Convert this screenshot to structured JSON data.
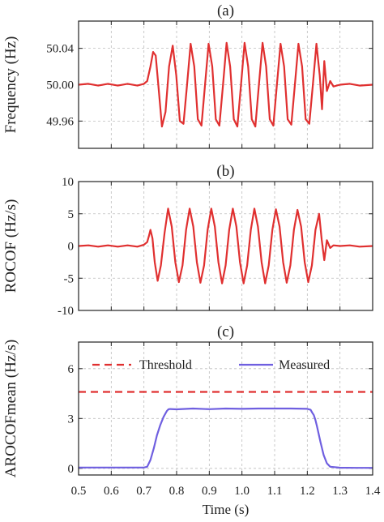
{
  "chart_data": [
    {
      "panel": "(a)",
      "type": "line",
      "title": "(a)",
      "xlabel": "",
      "ylabel": "Frequency (Hz)",
      "xlim": [
        0.5,
        1.4
      ],
      "ylim": [
        49.93,
        50.07
      ],
      "yticks": [
        49.96,
        50.0,
        50.04
      ],
      "ytick_labels": [
        "49.96",
        "50.00",
        "50.04"
      ],
      "grid": "dashed",
      "line_color": "#e03030",
      "series": [
        {
          "x": [
            0.5,
            0.53,
            0.56,
            0.59,
            0.62,
            0.65,
            0.68,
            0.7,
            0.71,
            0.715,
            0.72,
            0.728,
            0.736,
            0.745,
            0.755,
            0.766,
            0.777,
            0.788,
            0.799,
            0.81,
            0.821,
            0.832,
            0.843,
            0.854,
            0.865,
            0.876,
            0.887,
            0.898,
            0.909,
            0.92,
            0.931,
            0.942,
            0.953,
            0.964,
            0.975,
            0.986,
            0.997,
            1.008,
            1.019,
            1.03,
            1.041,
            1.052,
            1.063,
            1.074,
            1.085,
            1.096,
            1.107,
            1.118,
            1.129,
            1.14,
            1.151,
            1.162,
            1.173,
            1.184,
            1.195,
            1.206,
            1.217,
            1.228,
            1.238,
            1.245,
            1.252,
            1.26,
            1.27,
            1.28,
            1.3,
            1.33,
            1.36,
            1.4
          ],
          "y": [
            50.0,
            50.001,
            49.999,
            50.001,
            49.999,
            50.001,
            49.999,
            50.001,
            50.004,
            50.012,
            50.02,
            50.036,
            50.032,
            49.996,
            49.954,
            49.97,
            50.02,
            50.043,
            50.01,
            49.96,
            49.957,
            50.0,
            50.045,
            50.02,
            49.962,
            49.955,
            50.0,
            50.045,
            50.02,
            49.962,
            49.955,
            50.0,
            50.046,
            50.02,
            49.962,
            49.954,
            50.0,
            50.046,
            50.02,
            49.962,
            49.954,
            50.0,
            50.046,
            50.02,
            49.962,
            49.955,
            50.0,
            50.045,
            50.02,
            49.962,
            49.956,
            50.0,
            50.045,
            50.02,
            49.962,
            49.957,
            50.0,
            50.045,
            50.01,
            49.973,
            50.026,
            49.993,
            50.004,
            49.998,
            50.0,
            50.001,
            49.999,
            50.0
          ]
        }
      ]
    },
    {
      "panel": "(b)",
      "type": "line",
      "title": "(b)",
      "xlabel": "",
      "ylabel": "ROCOF (Hz/s)",
      "xlim": [
        0.5,
        1.4
      ],
      "ylim": [
        -10,
        10
      ],
      "yticks": [
        -10,
        -5,
        0,
        5,
        10
      ],
      "ytick_labels": [
        "-10",
        "-5",
        "0",
        "5",
        "10"
      ],
      "grid": "dashed",
      "line_color": "#e03030",
      "series": [
        {
          "x": [
            0.5,
            0.53,
            0.56,
            0.59,
            0.62,
            0.65,
            0.68,
            0.7,
            0.71,
            0.715,
            0.72,
            0.726,
            0.733,
            0.742,
            0.752,
            0.763,
            0.774,
            0.785,
            0.796,
            0.807,
            0.818,
            0.829,
            0.84,
            0.851,
            0.862,
            0.873,
            0.884,
            0.895,
            0.906,
            0.917,
            0.928,
            0.939,
            0.95,
            0.961,
            0.972,
            0.983,
            0.994,
            1.005,
            1.016,
            1.027,
            1.038,
            1.049,
            1.06,
            1.071,
            1.082,
            1.093,
            1.104,
            1.115,
            1.126,
            1.137,
            1.148,
            1.159,
            1.17,
            1.181,
            1.192,
            1.203,
            1.214,
            1.225,
            1.236,
            1.244,
            1.252,
            1.26,
            1.27,
            1.28,
            1.3,
            1.33,
            1.36,
            1.4
          ],
          "y": [
            0.0,
            0.1,
            -0.1,
            0.1,
            -0.1,
            0.1,
            -0.1,
            0.2,
            0.6,
            1.5,
            2.5,
            1.2,
            -2.5,
            -5.4,
            -3.0,
            2.0,
            5.8,
            3.0,
            -2.5,
            -5.6,
            -3.0,
            2.5,
            5.8,
            3.0,
            -2.5,
            -5.7,
            -3.0,
            2.5,
            5.8,
            3.0,
            -2.5,
            -5.8,
            -3.0,
            2.5,
            5.8,
            3.0,
            -2.5,
            -5.8,
            -3.0,
            2.5,
            5.8,
            3.0,
            -2.5,
            -5.8,
            -3.0,
            2.5,
            5.7,
            3.0,
            -2.5,
            -5.7,
            -3.0,
            2.5,
            5.6,
            3.0,
            -2.5,
            -5.6,
            -3.0,
            2.5,
            5.0,
            1.0,
            -2.2,
            0.9,
            -0.3,
            0.1,
            0.0,
            0.1,
            -0.1,
            0.0
          ]
        }
      ]
    },
    {
      "panel": "(c)",
      "type": "line",
      "title": "(c)",
      "xlabel": "Time (s)",
      "ylabel": "AROCOFmean (Hz/s)",
      "xlim": [
        0.5,
        1.4
      ],
      "ylim": [
        -0.4,
        7.6
      ],
      "xticks": [
        0.5,
        0.6,
        0.7,
        0.8,
        0.9,
        1.0,
        1.1,
        1.2,
        1.3,
        1.4
      ],
      "xtick_labels": [
        "0.5",
        "0.6",
        "0.7",
        "0.8",
        "0.9",
        "1.0",
        "1.1",
        "1.2",
        "1.3",
        "1.4"
      ],
      "yticks": [
        0,
        3,
        6
      ],
      "ytick_labels": [
        "0",
        "3",
        "6"
      ],
      "grid": "dashed",
      "legend_position": "top",
      "series": [
        {
          "name": "Threshold",
          "style": "dashed",
          "color": "#e03030",
          "x": [
            0.5,
            1.4
          ],
          "y": [
            4.6,
            4.6
          ]
        },
        {
          "name": "Measured",
          "style": "solid",
          "color": "#6f5fe0",
          "x": [
            0.5,
            0.6,
            0.7,
            0.71,
            0.72,
            0.73,
            0.74,
            0.75,
            0.76,
            0.77,
            0.775,
            0.78,
            0.8,
            0.85,
            0.9,
            0.95,
            1.0,
            1.05,
            1.1,
            1.15,
            1.2,
            1.21,
            1.215,
            1.22,
            1.225,
            1.23,
            1.24,
            1.25,
            1.26,
            1.27,
            1.3,
            1.35,
            1.4
          ],
          "y": [
            0.05,
            0.05,
            0.05,
            0.1,
            0.5,
            1.2,
            2.0,
            2.6,
            3.1,
            3.45,
            3.55,
            3.57,
            3.55,
            3.6,
            3.56,
            3.6,
            3.58,
            3.6,
            3.6,
            3.6,
            3.58,
            3.52,
            3.35,
            3.2,
            2.9,
            2.5,
            1.6,
            0.8,
            0.3,
            0.1,
            0.04,
            0.03,
            0.03
          ]
        }
      ]
    }
  ]
}
